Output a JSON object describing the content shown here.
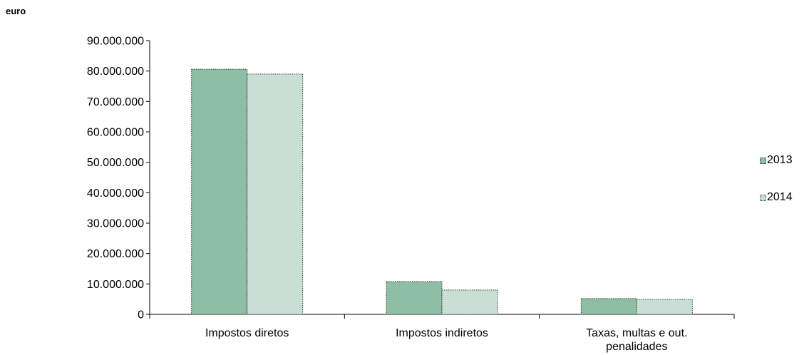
{
  "unit_label": "euro",
  "chart_data": {
    "type": "bar",
    "categories": [
      [
        "Impostos diretos"
      ],
      [
        "Impostos indiretos"
      ],
      [
        "Taxas, multas e out.",
        "penalidades"
      ]
    ],
    "series": [
      {
        "name": "2013",
        "color": "#8fbea6",
        "values": [
          80600000,
          10800000,
          5200000
        ]
      },
      {
        "name": "2014",
        "color": "#c8e0d3",
        "values": [
          79000000,
          8000000,
          4900000
        ]
      }
    ],
    "ylim": [
      0,
      90000000
    ],
    "yticks": [
      0,
      10000000,
      20000000,
      30000000,
      40000000,
      50000000,
      60000000,
      70000000,
      80000000,
      90000000
    ],
    "ytick_labels": [
      "0",
      "10.000.000",
      "20.000.000",
      "30.000.000",
      "40.000.000",
      "50.000.000",
      "60.000.000",
      "70.000.000",
      "80.000.000",
      "90.000.000"
    ],
    "legend_position": "right",
    "grid": false
  }
}
